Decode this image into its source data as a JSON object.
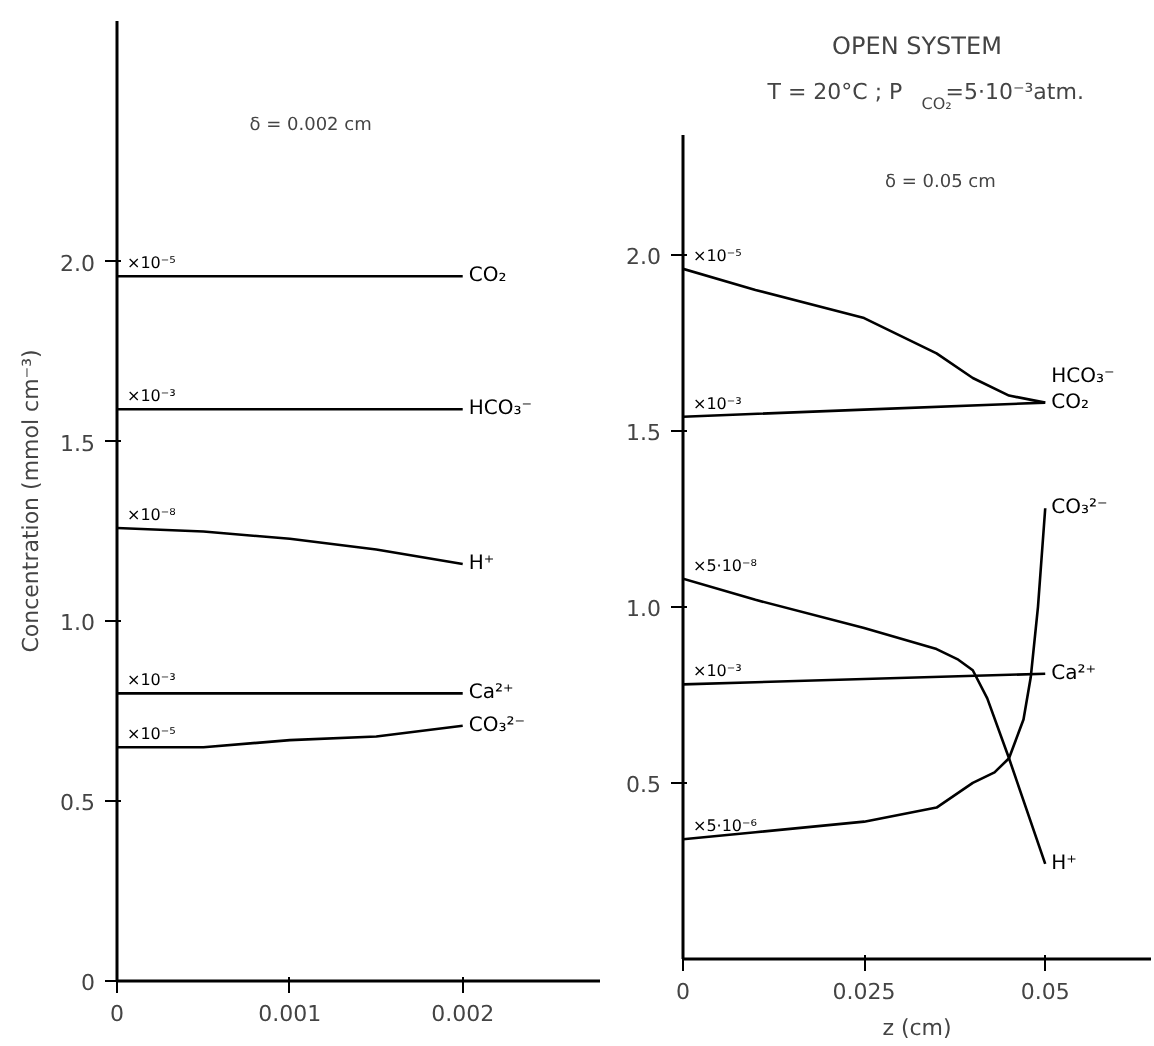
{
  "chart_data": [
    {
      "type": "line",
      "subtitle": "δ = 0.002 cm",
      "ylabel": "Concentration (mmol cm⁻³)",
      "xlim": [
        0,
        0.0028
      ],
      "ylim": [
        0,
        2.67
      ],
      "xticks": [
        0,
        0.001,
        0.002
      ],
      "yticks": [
        0,
        {
          "value": 0.5,
          "label": "0.5"
        },
        {
          "value": 1,
          "label": "1.0"
        },
        {
          "value": 1.5,
          "label": "1.5"
        },
        {
          "value": 2,
          "label": "2.0"
        }
      ],
      "grid": false,
      "legend": false,
      "series": [
        {
          "name": "CO₂",
          "color": "#000000",
          "x": [
            0,
            0.002
          ],
          "values": [
            1.96,
            1.96
          ]
        },
        {
          "name": "HCO₃⁻",
          "color": "#000000",
          "x": [
            0,
            0.002
          ],
          "values": [
            1.59,
            1.59
          ]
        },
        {
          "name": "H⁺",
          "color": "#000000",
          "x": [
            0,
            0.0005,
            0.001,
            0.0015,
            0.002
          ],
          "values": [
            1.26,
            1.25,
            1.23,
            1.2,
            1.16
          ]
        },
        {
          "name": "Ca²⁺",
          "color": "#000000",
          "x": [
            0,
            0.002
          ],
          "values": [
            0.8,
            0.8
          ]
        },
        {
          "name": "CO₃²⁻",
          "color": "#000000",
          "x": [
            0,
            0.0005,
            0.001,
            0.0015,
            0.002
          ],
          "values": [
            0.65,
            0.65,
            0.67,
            0.68,
            0.71
          ]
        }
      ],
      "annotations": [
        "×10⁻⁵",
        "×10⁻³",
        "×10⁻⁸",
        "×10⁻³",
        "×10⁻⁵"
      ]
    },
    {
      "type": "line",
      "title": "OPEN SYSTEM",
      "subtitle": "T = 20°C  ;  P$_{CO₂}$=5·10⁻³atm.",
      "xlabel": "z (cm)",
      "xlim": [
        0,
        0.0646
      ],
      "ylim": [
        0,
        2.34
      ],
      "xticks": [
        0,
        0.025,
        0.05
      ],
      "yticks": [
        {
          "value": 0.5,
          "label": "0.5"
        },
        {
          "value": 1,
          "label": "1.0"
        },
        {
          "value": 1.5,
          "label": "1.5"
        },
        {
          "value": 2,
          "label": "2.0"
        }
      ],
      "grid": false,
      "legend": false,
      "series": [
        {
          "name": "CO₂",
          "color": "#000000",
          "x": [
            0,
            0.01,
            0.025,
            0.035,
            0.04,
            0.045,
            0.05
          ],
          "values": [
            1.96,
            1.9,
            1.82,
            1.72,
            1.65,
            1.6,
            1.58
          ]
        },
        {
          "name": "HCO₃⁻",
          "color": "#000000",
          "x": [
            0,
            0.025,
            0.05
          ],
          "values": [
            1.54,
            1.56,
            1.58
          ]
        },
        {
          "name": "H⁺",
          "color": "#000000",
          "x": [
            0,
            0.01,
            0.025,
            0.035,
            0.038,
            0.04,
            0.042,
            0.045,
            0.05
          ],
          "values": [
            1.08,
            1.02,
            0.94,
            0.88,
            0.85,
            0.82,
            0.74,
            0.57,
            0.27
          ]
        },
        {
          "name": "Ca²⁺",
          "color": "#000000",
          "x": [
            0,
            0.05
          ],
          "values": [
            0.78,
            0.81
          ]
        },
        {
          "name": "CO₃²⁻",
          "color": "#000000",
          "x": [
            0,
            0.01,
            0.025,
            0.035,
            0.04,
            0.043,
            0.045,
            0.047,
            0.048,
            0.049,
            0.05
          ],
          "values": [
            0.34,
            0.36,
            0.39,
            0.43,
            0.5,
            0.53,
            0.57,
            0.68,
            0.8,
            1.0,
            1.28
          ]
        }
      ],
      "annotations": [
        "×10⁻⁵",
        "×10⁻³",
        "×5·10⁻⁸",
        "×10⁻³",
        "×5·10⁻⁶",
        "δ = 0.05 cm"
      ]
    }
  ]
}
